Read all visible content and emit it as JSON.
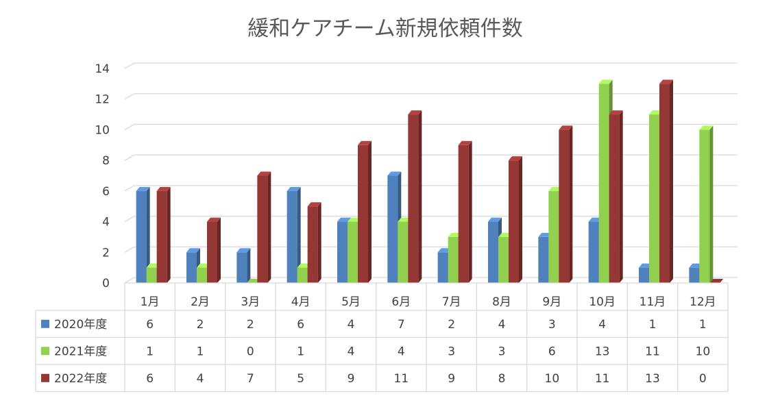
{
  "chart_data": {
    "type": "bar",
    "title": "緩和ケアチーム新規依頼件数",
    "categories": [
      "1月",
      "2月",
      "3月",
      "4月",
      "5月",
      "6月",
      "7月",
      "8月",
      "9月",
      "10月",
      "11月",
      "12月"
    ],
    "ylim": [
      0,
      14
    ],
    "yticks": [
      "0",
      "2",
      "4",
      "6",
      "8",
      "10",
      "12",
      "14"
    ],
    "grid": true,
    "legend": "data-table",
    "series": [
      {
        "name": "2020年度",
        "color": "#4f81bd",
        "values": [
          6,
          2,
          2,
          6,
          4,
          7,
          2,
          4,
          3,
          4,
          1,
          1
        ]
      },
      {
        "name": "2021年度",
        "color": "#92d050",
        "values": [
          1,
          1,
          0,
          1,
          4,
          4,
          3,
          3,
          6,
          13,
          11,
          10
        ]
      },
      {
        "name": "2022年度",
        "color": "#953735",
        "values": [
          6,
          4,
          7,
          5,
          9,
          11,
          9,
          8,
          10,
          11,
          13,
          0
        ]
      }
    ]
  }
}
